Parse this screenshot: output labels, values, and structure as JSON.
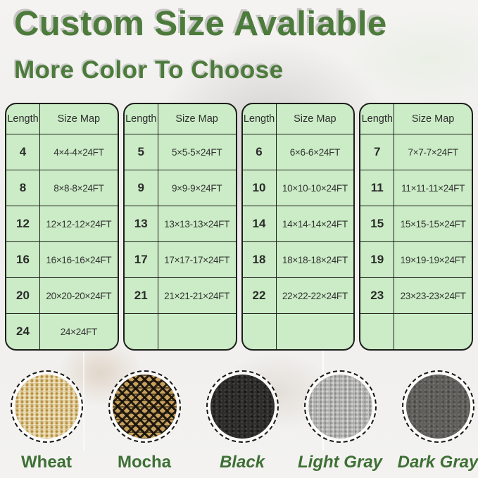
{
  "header": {
    "title": "Custom Size Avaliable",
    "subtitle": "More Color To Choose"
  },
  "table_header": {
    "length": "Length",
    "size_map": "Size Map"
  },
  "size_tables": [
    {
      "rows": [
        {
          "length": "4",
          "size": "4×4-4×24FT"
        },
        {
          "length": "8",
          "size": "8×8-8×24FT"
        },
        {
          "length": "12",
          "size": "12×12-12×24FT"
        },
        {
          "length": "16",
          "size": "16×16-16×24FT"
        },
        {
          "length": "20",
          "size": "20×20-20×24FT"
        },
        {
          "length": "24",
          "size": "24×24FT"
        }
      ]
    },
    {
      "rows": [
        {
          "length": "5",
          "size": "5×5-5×24FT"
        },
        {
          "length": "9",
          "size": "9×9-9×24FT"
        },
        {
          "length": "13",
          "size": "13×13-13×24FT"
        },
        {
          "length": "17",
          "size": "17×17-17×24FT"
        },
        {
          "length": "21",
          "size": "21×21-21×24FT"
        },
        {
          "length": "",
          "size": ""
        }
      ]
    },
    {
      "rows": [
        {
          "length": "6",
          "size": "6×6-6×24FT"
        },
        {
          "length": "10",
          "size": "10×10-10×24FT"
        },
        {
          "length": "14",
          "size": "14×14-14×24FT"
        },
        {
          "length": "18",
          "size": "18×18-18×24FT"
        },
        {
          "length": "22",
          "size": "22×22-22×24FT"
        },
        {
          "length": "",
          "size": ""
        }
      ]
    },
    {
      "rows": [
        {
          "length": "7",
          "size": "7×7-7×24FT"
        },
        {
          "length": "11",
          "size": "11×11-11×24FT"
        },
        {
          "length": "15",
          "size": "15×15-15×24FT"
        },
        {
          "length": "19",
          "size": "19×19-19×24FT"
        },
        {
          "length": "23",
          "size": "23×23-23×24FT"
        },
        {
          "length": "",
          "size": ""
        }
      ]
    }
  ],
  "swatches": [
    {
      "label": "Wheat",
      "color": "#e0cd9a",
      "italic": false
    },
    {
      "label": "Mocha",
      "color": "#8a7342",
      "italic": false
    },
    {
      "label": "Black",
      "color": "#2d2c2a",
      "italic": true
    },
    {
      "label": "Light Gray",
      "color": "#aeaeab",
      "italic": true
    },
    {
      "label": "Dark Gray",
      "color": "#605f5b",
      "italic": true
    }
  ],
  "colors": {
    "accent_green_text": "#4c7b3b",
    "label_green_text": "#3e7035",
    "table_background": "#cbecc6",
    "table_border": "#1d1d1b",
    "page_background": "#f1f0ee"
  }
}
